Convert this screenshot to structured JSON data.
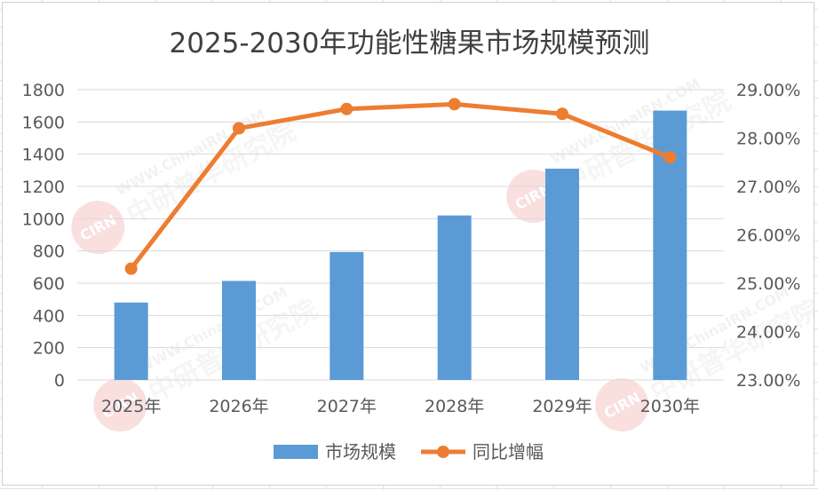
{
  "chart_data": {
    "type": "bar",
    "title": "2025-2030年功能性糖果市场规模预测",
    "categories": [
      "2025年",
      "2026年",
      "2027年",
      "2028年",
      "2029年",
      "2030年"
    ],
    "series": [
      {
        "name": "市场规模",
        "type": "bar",
        "axis": "left",
        "color": "#5b9bd5",
        "values": [
          480,
          614,
          793,
          1020,
          1310,
          1670
        ]
      },
      {
        "name": "同比增幅",
        "type": "line",
        "axis": "right",
        "color": "#ed7d31",
        "values": [
          0.253,
          0.282,
          0.286,
          0.287,
          0.285,
          0.276
        ]
      }
    ],
    "y_left": {
      "ylim": [
        0,
        1800
      ],
      "ticks": [
        0,
        200,
        400,
        600,
        800,
        1000,
        1200,
        1400,
        1600,
        1800
      ],
      "tick_labels": [
        "0",
        "200",
        "400",
        "600",
        "800",
        "1000",
        "1200",
        "1400",
        "1600",
        "1800"
      ]
    },
    "y_right": {
      "ylim": [
        0.23,
        0.29
      ],
      "ticks": [
        0.23,
        0.24,
        0.25,
        0.26,
        0.27,
        0.28,
        0.29
      ],
      "tick_labels": [
        "23.00%",
        "24.00%",
        "25.00%",
        "26.00%",
        "27.00%",
        "28.00%",
        "29.00%"
      ]
    },
    "xlabel": "",
    "ylabel": "",
    "grid": true,
    "legend_position": "bottom",
    "watermark": "WWW.ChinaIRN.COM 中研普华研究院"
  }
}
